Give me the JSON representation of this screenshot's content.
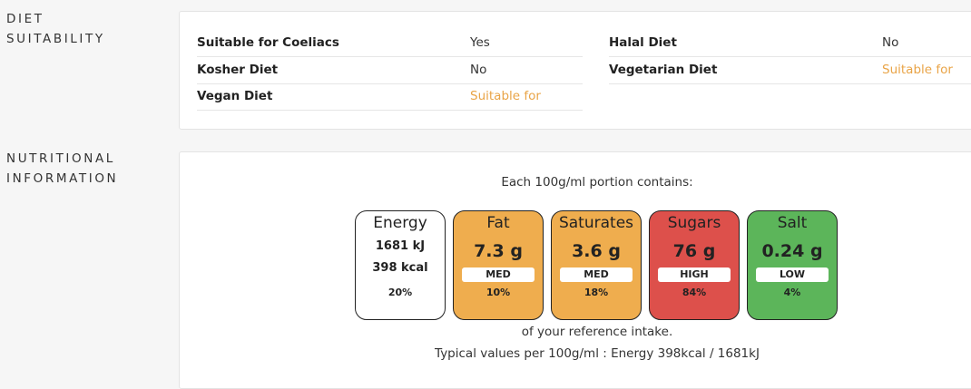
{
  "sections": {
    "diet_label_line1": "DIET",
    "diet_label_line2": "SUITABILITY",
    "nutrition_label_line1": "NUTRITIONAL",
    "nutrition_label_line2": "INFORMATION"
  },
  "diet": {
    "left": [
      {
        "label": "Suitable for Coeliacs",
        "value": "Yes"
      },
      {
        "label": "Kosher Diet",
        "value": "No"
      },
      {
        "label": "Vegan Diet",
        "value": "Suitable for"
      }
    ],
    "right": [
      {
        "label": "Halal Diet",
        "value": "No"
      },
      {
        "label": "Vegetarian Diet",
        "value": "Suitable for"
      }
    ]
  },
  "nutrition": {
    "portion_text": "Each 100g/ml portion contains:",
    "energy": {
      "name": "Energy",
      "kj": "1681 kJ",
      "kcal": "398 kcal",
      "percent": "20%"
    },
    "tiles": [
      {
        "name": "Fat",
        "amount": "7.3 g",
        "level": "MED",
        "percent": "10%",
        "color": "#efad4e"
      },
      {
        "name": "Saturates",
        "amount": "3.6 g",
        "level": "MED",
        "percent": "18%",
        "color": "#efad4e"
      },
      {
        "name": "Sugars",
        "amount": "76 g",
        "level": "HIGH",
        "percent": "84%",
        "color": "#dd504b"
      },
      {
        "name": "Salt",
        "amount": "0.24 g",
        "level": "LOW",
        "percent": "4%",
        "color": "#5cb55a"
      }
    ],
    "reference_text": "of your reference intake.",
    "typical_text": "Typical values per 100g/ml : Energy 398kcal / 1681kJ"
  },
  "colors": {
    "orange_value": "#e9a447",
    "med": "#efad4e",
    "high": "#dd504b",
    "low": "#5cb55a"
  }
}
